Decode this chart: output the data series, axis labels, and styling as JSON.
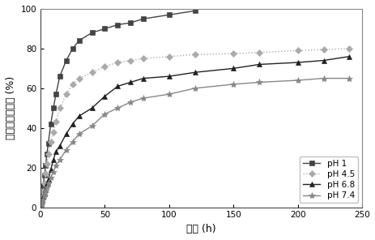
{
  "title": "",
  "xlabel": "时间 (h)",
  "ylabel": "累积释放百分率 (%)",
  "xlim": [
    0,
    250
  ],
  "ylim": [
    0,
    100
  ],
  "xticks": [
    0,
    50,
    100,
    150,
    200,
    250
  ],
  "yticks": [
    0,
    20,
    40,
    60,
    80,
    100
  ],
  "series": [
    {
      "label": "pH 1",
      "color": "#444444",
      "linestyle": "-",
      "linewidth": 1.0,
      "marker": "s",
      "markersize": 4,
      "x": [
        0,
        0.5,
        1,
        2,
        3,
        4,
        5,
        6,
        8,
        10,
        12,
        15,
        20,
        25,
        30,
        40,
        50,
        60,
        70,
        80,
        100,
        120
      ],
      "y": [
        0,
        4,
        7,
        11,
        16,
        21,
        27,
        32,
        42,
        50,
        57,
        66,
        74,
        80,
        84,
        88,
        90,
        92,
        93,
        95,
        97,
        99
      ]
    },
    {
      "label": "pH 4.5",
      "color": "#aaaaaa",
      "linestyle": ":",
      "linewidth": 1.0,
      "marker": "D",
      "markersize": 4,
      "x": [
        0,
        0.5,
        1,
        2,
        3,
        4,
        5,
        6,
        8,
        10,
        12,
        15,
        20,
        25,
        30,
        40,
        50,
        60,
        70,
        80,
        100,
        120,
        150,
        170,
        200,
        220,
        240
      ],
      "y": [
        0,
        3,
        5,
        8,
        12,
        17,
        22,
        27,
        33,
        38,
        43,
        50,
        57,
        62,
        65,
        68,
        71,
        73,
        74,
        75,
        76,
        77,
        77.5,
        78,
        79,
        79.5,
        80
      ]
    },
    {
      "label": "pH 6.8",
      "color": "#222222",
      "linestyle": "-",
      "linewidth": 1.0,
      "marker": "^",
      "markersize": 5,
      "x": [
        0,
        0.5,
        1,
        2,
        3,
        4,
        5,
        6,
        8,
        10,
        12,
        15,
        20,
        25,
        30,
        40,
        50,
        60,
        70,
        80,
        100,
        120,
        150,
        170,
        200,
        220,
        240
      ],
      "y": [
        0,
        2,
        3,
        5,
        7,
        9,
        12,
        14,
        19,
        24,
        28,
        31,
        37,
        42,
        46,
        50,
        56,
        61,
        63,
        65,
        66,
        68,
        70,
        72,
        73,
        74,
        76
      ]
    },
    {
      "label": "pH 7.4",
      "color": "#888888",
      "linestyle": "-",
      "linewidth": 1.0,
      "marker": "*",
      "markersize": 6,
      "x": [
        0,
        0.5,
        1,
        2,
        3,
        4,
        5,
        6,
        8,
        10,
        12,
        15,
        20,
        25,
        30,
        40,
        50,
        60,
        70,
        80,
        100,
        120,
        150,
        170,
        200,
        220,
        240
      ],
      "y": [
        0,
        1.5,
        2.5,
        4,
        6,
        8,
        10,
        12,
        15,
        18,
        21,
        24,
        29,
        33,
        37,
        41,
        47,
        50,
        53,
        55,
        57,
        60,
        62,
        63,
        64,
        65,
        65
      ]
    }
  ],
  "legend_loc": "lower right",
  "legend_fontsize": 7.5,
  "axis_fontsize": 9,
  "tick_fontsize": 7.5,
  "background_color": "#ffffff"
}
